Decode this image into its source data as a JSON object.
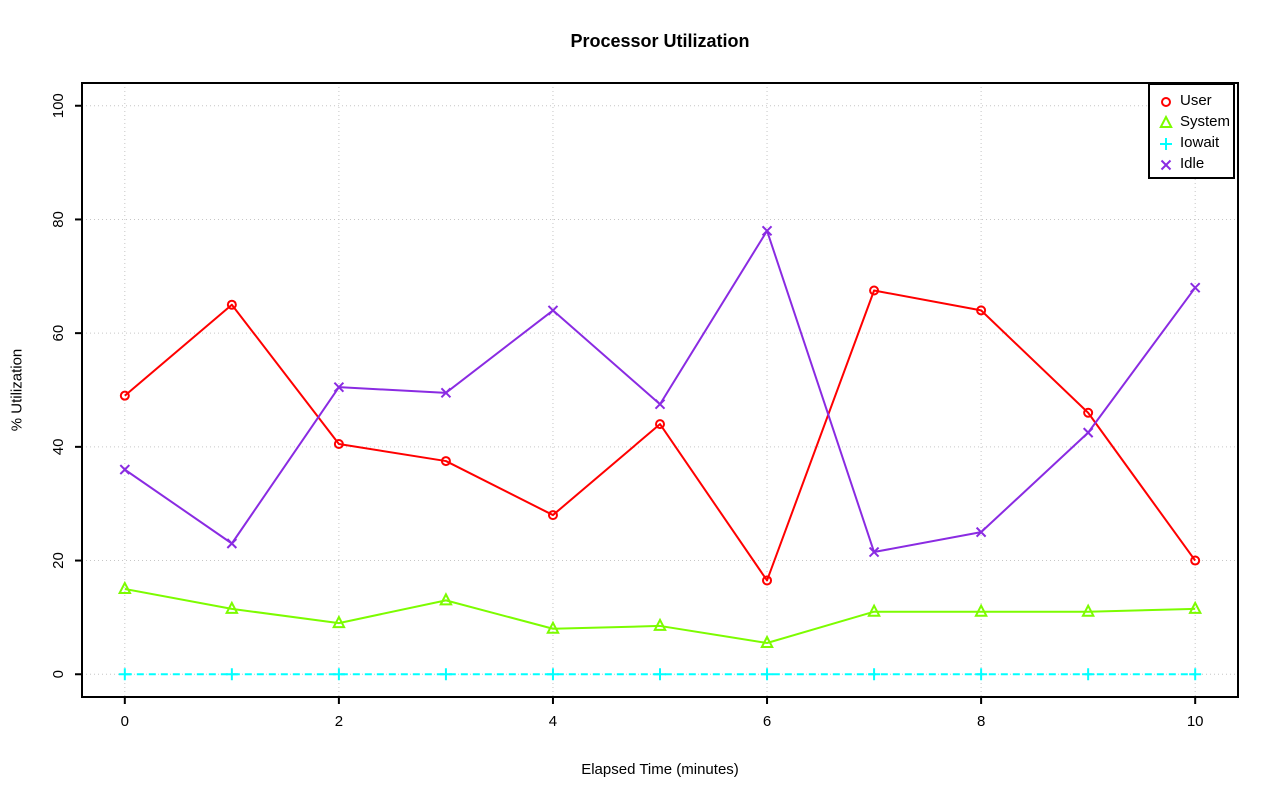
{
  "chart_data": {
    "type": "line",
    "title": "Processor Utilization",
    "xlabel": "Elapsed Time (minutes)",
    "ylabel": "% Utilization",
    "x": [
      0,
      1,
      2,
      3,
      4,
      5,
      6,
      7,
      8,
      9,
      10
    ],
    "xticks": [
      0,
      2,
      4,
      6,
      8,
      10
    ],
    "yticks": [
      0,
      20,
      40,
      60,
      80,
      100
    ],
    "xlim": [
      -0.4,
      10.4
    ],
    "ylim": [
      -4,
      104
    ],
    "grid": "dotted-gray-both-axes",
    "legend_position": "top-right-inside",
    "grid_color": "#c6c6c6",
    "background": "#ffffff",
    "series": [
      {
        "name": "User",
        "color": "#ff0000",
        "marker": "circle",
        "line_style": "solid",
        "values": [
          49,
          65,
          40.5,
          37.5,
          28,
          44,
          16.5,
          67.5,
          64,
          46,
          20
        ]
      },
      {
        "name": "System",
        "color": "#7cfc00",
        "marker": "triangle",
        "line_style": "solid",
        "values": [
          15,
          11.5,
          9,
          13,
          8,
          8.5,
          5.5,
          11,
          11,
          11,
          11.5
        ]
      },
      {
        "name": "Iowait",
        "color": "#00ffff",
        "marker": "plus",
        "line_style": "dashed",
        "values": [
          0,
          0,
          0,
          0,
          0,
          0,
          0,
          0,
          0,
          0,
          0
        ]
      },
      {
        "name": "Idle",
        "color": "#8a2be2",
        "marker": "x",
        "line_style": "solid",
        "values": [
          36,
          23,
          50.5,
          49.5,
          64,
          47.5,
          78,
          21.5,
          25,
          42.5,
          68
        ]
      }
    ]
  }
}
